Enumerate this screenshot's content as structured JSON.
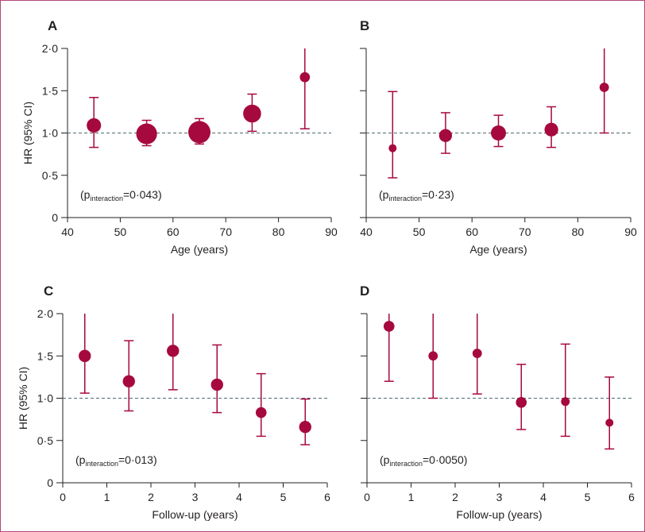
{
  "colors": {
    "marker": "#a6093d",
    "axis": "#231f20",
    "reference_line": "#4d6b74",
    "frame": "#b5477a"
  },
  "chart_data": [
    {
      "type": "scatter",
      "panel": "A",
      "xlabel": "Age (years)",
      "ylabel": "HR (95% CI)",
      "xlim": [
        40,
        90
      ],
      "ylim": [
        0,
        2.0
      ],
      "xticks": [
        {
          "v": 40,
          "label": "40"
        },
        {
          "v": 50,
          "label": "50"
        },
        {
          "v": 60,
          "label": "60"
        },
        {
          "v": 70,
          "label": "70"
        },
        {
          "v": 80,
          "label": "80"
        },
        {
          "v": 90,
          "label": "90"
        }
      ],
      "yticks": [
        {
          "v": 0,
          "label": "0"
        },
        {
          "v": 0.5,
          "label": "0·5"
        },
        {
          "v": 1.0,
          "label": "1·0"
        },
        {
          "v": 1.5,
          "label": "1·5"
        },
        {
          "v": 2.0,
          "label": "2·0"
        }
      ],
      "reference_line": 1.0,
      "p_interaction": {
        "prefix": "(p",
        "subscript": "interaction",
        "suffix": "=0·043)"
      },
      "points": [
        {
          "x": 45,
          "y": 1.09,
          "lo": 0.83,
          "hi": 1.42,
          "weight": 0.45
        },
        {
          "x": 55,
          "y": 0.99,
          "lo": 0.85,
          "hi": 1.15,
          "weight": 0.9
        },
        {
          "x": 65,
          "y": 1.01,
          "lo": 0.87,
          "hi": 1.17,
          "weight": 1.0
        },
        {
          "x": 75,
          "y": 1.23,
          "lo": 1.02,
          "hi": 1.46,
          "weight": 0.7
        },
        {
          "x": 85,
          "y": 1.66,
          "lo": 1.05,
          "hi": 2.0,
          "weight": 0.15
        }
      ]
    },
    {
      "type": "scatter",
      "panel": "B",
      "xlabel": "Age (years)",
      "ylabel": "",
      "xlim": [
        40,
        90
      ],
      "ylim": [
        0,
        2.0
      ],
      "xticks": [
        {
          "v": 40,
          "label": "40"
        },
        {
          "v": 50,
          "label": "50"
        },
        {
          "v": 60,
          "label": "60"
        },
        {
          "v": 70,
          "label": "70"
        },
        {
          "v": 80,
          "label": "80"
        },
        {
          "v": 90,
          "label": "90"
        }
      ],
      "yticks": [
        {
          "v": 0,
          "label": ""
        },
        {
          "v": 0.5,
          "label": ""
        },
        {
          "v": 1.0,
          "label": ""
        },
        {
          "v": 1.5,
          "label": ""
        },
        {
          "v": 2.0,
          "label": ""
        }
      ],
      "reference_line": 1.0,
      "p_interaction": {
        "prefix": "(p",
        "subscript": "interaction",
        "suffix": "=0·23)"
      },
      "points": [
        {
          "x": 45,
          "y": 0.82,
          "lo": 0.47,
          "hi": 1.49,
          "weight": 0.0
        },
        {
          "x": 55,
          "y": 0.97,
          "lo": 0.76,
          "hi": 1.24,
          "weight": 0.35
        },
        {
          "x": 65,
          "y": 1.0,
          "lo": 0.84,
          "hi": 1.21,
          "weight": 0.5
        },
        {
          "x": 75,
          "y": 1.04,
          "lo": 0.83,
          "hi": 1.31,
          "weight": 0.4
        },
        {
          "x": 85,
          "y": 1.54,
          "lo": 1.0,
          "hi": 2.0,
          "weight": 0.1
        }
      ]
    },
    {
      "type": "scatter",
      "panel": "C",
      "xlabel": "Follow-up (years)",
      "ylabel": "HR (95% CI)",
      "xlim": [
        0,
        6
      ],
      "ylim": [
        0,
        2.0
      ],
      "xticks": [
        {
          "v": 0,
          "label": "0"
        },
        {
          "v": 1,
          "label": "1"
        },
        {
          "v": 2,
          "label": "2"
        },
        {
          "v": 3,
          "label": "3"
        },
        {
          "v": 4,
          "label": "4"
        },
        {
          "v": 5,
          "label": "5"
        },
        {
          "v": 6,
          "label": "6"
        }
      ],
      "yticks": [
        {
          "v": 0,
          "label": "0"
        },
        {
          "v": 0.5,
          "label": "0·5"
        },
        {
          "v": 1.0,
          "label": "1·0"
        },
        {
          "v": 1.5,
          "label": "1·5"
        },
        {
          "v": 2.0,
          "label": "2·0"
        }
      ],
      "reference_line": 1.0,
      "p_interaction": {
        "prefix": "(p",
        "subscript": "interaction",
        "suffix": "=0·013)"
      },
      "points": [
        {
          "x": 0.5,
          "y": 1.5,
          "lo": 1.06,
          "hi": 2.0,
          "weight": 0.3
        },
        {
          "x": 1.5,
          "y": 1.2,
          "lo": 0.85,
          "hi": 1.68,
          "weight": 0.3
        },
        {
          "x": 2.5,
          "y": 1.56,
          "lo": 1.1,
          "hi": 2.0,
          "weight": 0.3
        },
        {
          "x": 3.5,
          "y": 1.16,
          "lo": 0.83,
          "hi": 1.63,
          "weight": 0.3
        },
        {
          "x": 4.5,
          "y": 0.83,
          "lo": 0.55,
          "hi": 1.29,
          "weight": 0.2
        },
        {
          "x": 5.5,
          "y": 0.66,
          "lo": 0.45,
          "hi": 0.99,
          "weight": 0.3
        }
      ]
    },
    {
      "type": "scatter",
      "panel": "D",
      "xlabel": "Follow-up (years)",
      "ylabel": "",
      "xlim": [
        0,
        6
      ],
      "ylim": [
        0,
        2.0
      ],
      "xticks": [
        {
          "v": 0,
          "label": "0"
        },
        {
          "v": 1,
          "label": "1"
        },
        {
          "v": 2,
          "label": "2"
        },
        {
          "v": 3,
          "label": "3"
        },
        {
          "v": 4,
          "label": "4"
        },
        {
          "v": 5,
          "label": "5"
        },
        {
          "v": 6,
          "label": "6"
        }
      ],
      "yticks": [
        {
          "v": 0,
          "label": ""
        },
        {
          "v": 0.5,
          "label": ""
        },
        {
          "v": 1.0,
          "label": ""
        },
        {
          "v": 1.5,
          "label": ""
        },
        {
          "v": 2.0,
          "label": ""
        }
      ],
      "reference_line": 1.0,
      "p_interaction": {
        "prefix": "(p",
        "subscript": "interaction",
        "suffix": "=0·0050)"
      },
      "points": [
        {
          "x": 0.5,
          "y": 1.85,
          "lo": 1.2,
          "hi": 2.0,
          "weight": 0.2
        },
        {
          "x": 1.5,
          "y": 1.5,
          "lo": 1.0,
          "hi": 2.0,
          "weight": 0.1
        },
        {
          "x": 2.5,
          "y": 1.53,
          "lo": 1.05,
          "hi": 2.0,
          "weight": 0.1
        },
        {
          "x": 3.5,
          "y": 0.95,
          "lo": 0.63,
          "hi": 1.4,
          "weight": 0.2
        },
        {
          "x": 4.5,
          "y": 0.96,
          "lo": 0.55,
          "hi": 1.64,
          "weight": 0.05
        },
        {
          "x": 5.5,
          "y": 0.71,
          "lo": 0.4,
          "hi": 1.25,
          "weight": 0.0
        }
      ]
    }
  ]
}
